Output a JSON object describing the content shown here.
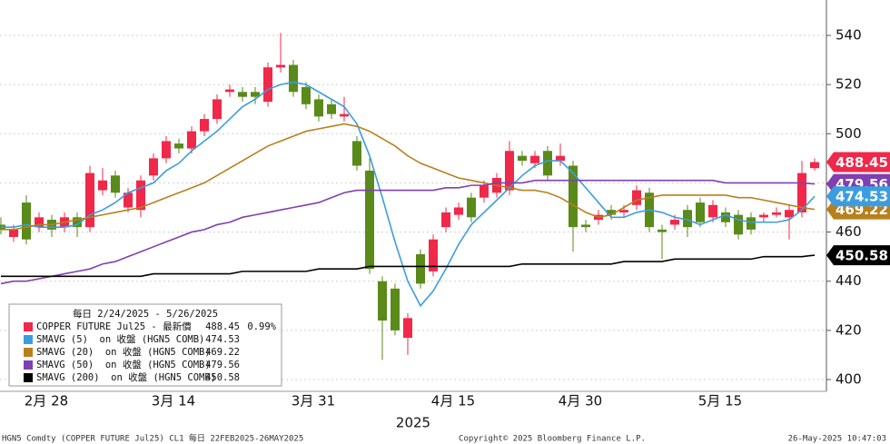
{
  "chart_data": {
    "type": "candlestick",
    "legend_title": "每日 2/24/2025 - 5/26/2025",
    "candle_name": "COPPER FUTURE Jul25 - 最新價",
    "change_label": "0.99%",
    "xlabel": "2025",
    "up_color": "#f0284a",
    "down_color": "#5a8a1a",
    "categories": [
      null,
      null,
      null,
      null,
      "2月 28",
      null,
      null,
      null,
      null,
      null,
      null,
      null,
      null,
      null,
      "3月 14",
      null,
      null,
      null,
      null,
      null,
      null,
      null,
      null,
      null,
      null,
      "3月 31",
      null,
      null,
      null,
      null,
      null,
      null,
      null,
      null,
      null,
      null,
      "4月 15",
      null,
      null,
      null,
      null,
      null,
      null,
      null,
      null,
      null,
      "4月 30",
      null,
      null,
      null,
      null,
      null,
      null,
      null,
      null,
      null,
      null,
      "5月 15",
      null,
      null,
      null,
      null,
      null,
      null,
      null
    ],
    "open": [
      463,
      458,
      472,
      462,
      465,
      462,
      466,
      462,
      477,
      483,
      470,
      469,
      483,
      490,
      496,
      494,
      501,
      506,
      517,
      517,
      517,
      513,
      527,
      528,
      519,
      514,
      512,
      507,
      497,
      485,
      440,
      437,
      417,
      451,
      444,
      462,
      467,
      474,
      474,
      476,
      477,
      491,
      488,
      493,
      489,
      487,
      463,
      465,
      469,
      468,
      471,
      476,
      461,
      463,
      469,
      472,
      466,
      468,
      467,
      466,
      466,
      467,
      466,
      468,
      486
    ],
    "high": [
      466,
      463,
      475,
      468,
      467,
      468,
      468,
      487,
      486,
      485,
      478,
      483,
      492,
      499,
      498,
      503,
      508,
      516,
      520,
      519,
      519,
      529,
      541,
      530,
      521,
      516,
      514,
      515,
      499,
      490,
      442,
      439,
      427,
      453,
      459,
      470,
      472,
      476,
      481,
      484,
      497,
      493,
      493,
      495,
      496,
      489,
      465,
      469,
      471,
      471,
      479,
      478,
      463,
      467,
      471,
      474,
      473,
      470,
      469,
      468,
      468,
      470,
      471,
      489,
      490
    ],
    "low": [
      459,
      456,
      455,
      460,
      458,
      460,
      458,
      460,
      475,
      474,
      468,
      466,
      481,
      488,
      492,
      492,
      499,
      504,
      515,
      513,
      512,
      511,
      525,
      515,
      510,
      505,
      506,
      505,
      485,
      443,
      408,
      418,
      410,
      437,
      442,
      460,
      465,
      464,
      472,
      474,
      475,
      487,
      486,
      481,
      487,
      452,
      460,
      463,
      465,
      466,
      469,
      460,
      449,
      461,
      458,
      462,
      464,
      462,
      457,
      459,
      464,
      466,
      457,
      466,
      485
    ],
    "close": [
      461,
      461,
      457,
      466,
      461,
      466,
      462,
      484,
      481,
      476,
      476,
      481,
      490,
      497,
      494,
      501,
      506,
      514,
      518,
      515,
      515,
      527,
      528,
      517,
      512,
      507,
      508,
      508,
      487,
      445,
      424,
      420,
      425,
      439,
      457,
      468,
      470,
      466,
      479,
      482,
      493,
      489,
      491,
      483,
      491,
      462,
      462,
      467,
      467,
      469,
      477,
      462,
      460,
      465,
      462,
      464,
      471,
      464,
      459,
      461,
      467,
      468,
      469,
      484,
      488.45
    ],
    "series": [
      {
        "name": "SMAVG (5)  on 收盤 (HGN5 COMB)",
        "color": "#3b9de0",
        "values": [
          462,
          462,
          463,
          462,
          462,
          462,
          463,
          467,
          469,
          472,
          476,
          478,
          480,
          485,
          488,
          493,
          497,
          501,
          506,
          511,
          514,
          518,
          520,
          521,
          520,
          517,
          514,
          511,
          504,
          491,
          474,
          456,
          440,
          430,
          436,
          445,
          455,
          463,
          468,
          473,
          478,
          483,
          487,
          489,
          489,
          484,
          478,
          472,
          466,
          466,
          468,
          469,
          468,
          466,
          465,
          463,
          465,
          467,
          465,
          464,
          464,
          464,
          465,
          469,
          474.53
        ]
      },
      {
        "name": "SMAVG (20)  on 收盤 (HGN5 COMB)",
        "color": "#b8801c",
        "values": [
          461,
          461,
          462,
          463,
          463,
          464,
          465,
          466,
          467,
          468,
          469,
          470,
          472,
          474,
          476,
          478,
          480,
          483,
          486,
          489,
          492,
          495,
          497,
          499,
          501,
          502,
          503,
          504,
          503,
          501,
          498,
          495,
          491,
          488,
          486,
          484,
          482,
          481,
          480,
          479,
          478,
          477,
          477,
          476,
          474,
          471,
          468,
          466,
          467,
          470,
          473,
          474,
          475,
          475,
          475,
          475,
          475,
          475,
          474,
          474,
          473,
          472,
          471,
          470,
          469.22
        ]
      },
      {
        "name": "SMAVG (50)  on 收盤 (HGN5 COMB)",
        "color": "#8040b0",
        "values": [
          439,
          440,
          440,
          441,
          442,
          443,
          444,
          445,
          447,
          448,
          450,
          452,
          454,
          456,
          458,
          460,
          461,
          463,
          464,
          466,
          467,
          468,
          469,
          470,
          471,
          472,
          474,
          476,
          477,
          477,
          477,
          477,
          477,
          477,
          477,
          478,
          478,
          479,
          479,
          480,
          480,
          480,
          481,
          481,
          481,
          481,
          481,
          481,
          481,
          481,
          481,
          481,
          481,
          481,
          481,
          481,
          481,
          480,
          480,
          480,
          480,
          480,
          480,
          480,
          479.56
        ]
      },
      {
        "name": "SMAVG (200)  on 收盤 (HGN5 COMB)",
        "color": "#000000",
        "values": [
          442,
          442,
          442,
          442,
          442,
          442,
          442,
          442,
          442,
          442,
          442,
          442,
          443,
          443,
          443,
          443,
          443,
          443,
          443,
          444,
          444,
          444,
          444,
          444,
          444,
          445,
          445,
          445,
          445,
          446,
          446,
          446,
          446,
          446,
          446,
          446,
          446,
          446,
          446,
          446,
          446,
          447,
          447,
          447,
          447,
          447,
          447,
          447,
          447,
          448,
          448,
          448,
          448,
          449,
          449,
          449,
          449,
          449,
          449,
          449,
          450,
          450,
          450,
          450,
          450.58
        ]
      }
    ],
    "ylim": [
      395.2,
      554.4
    ],
    "yticks": [
      400,
      420,
      440,
      460,
      480,
      500,
      520,
      540
    ],
    "grid": true,
    "footer": {
      "left": "HGN5 Comdty (COPPER FUTURE     Jul25) CL1  每日 22FEB2025-26MAY2025",
      "center": "Copyright© 2025 Bloomberg Finance L.P.",
      "right": "26-May-2025 10:47:03"
    }
  }
}
